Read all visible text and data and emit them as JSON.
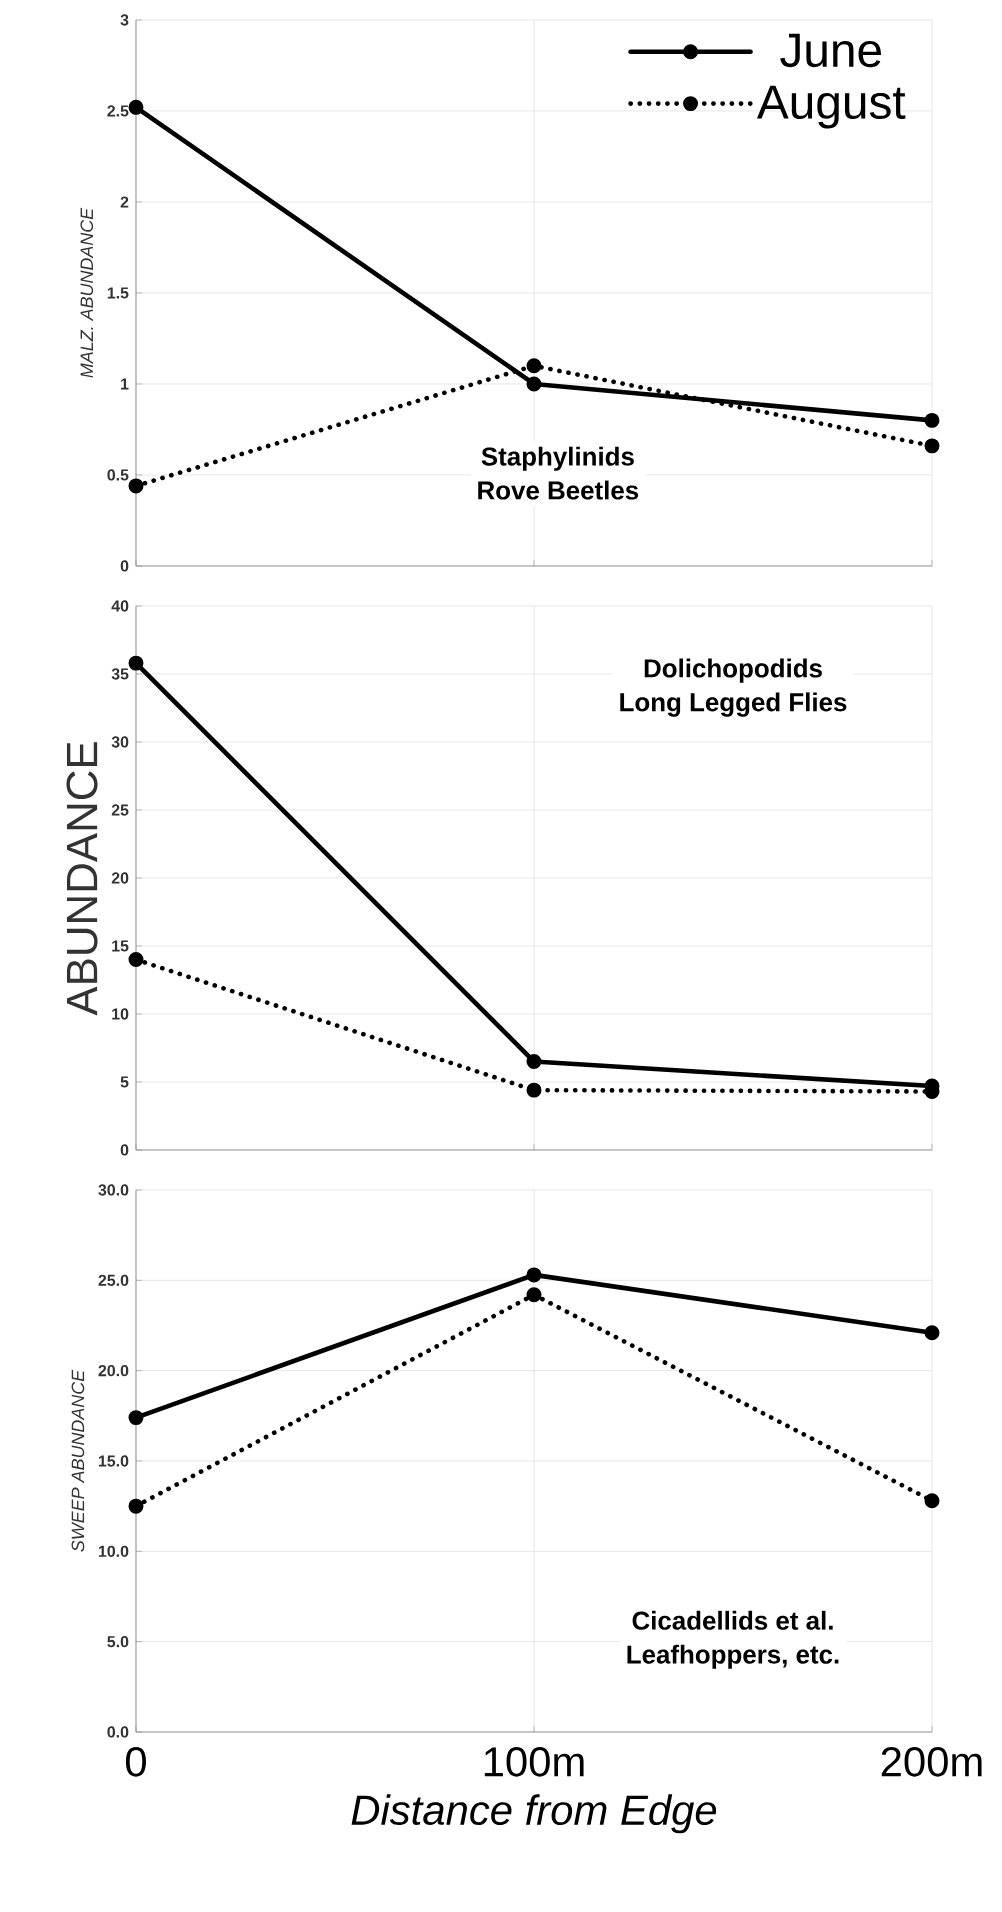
{
  "chart_data": [
    {
      "type": "line",
      "ylabel": "MALZ.  ABUNDANCE",
      "categories": [
        null,
        null,
        null
      ],
      "ylim": [
        0,
        3
      ],
      "yticks": [
        0,
        0.5,
        1,
        1.5,
        2,
        2.5,
        3
      ],
      "grid": true,
      "legend": "top right",
      "marker": "circle",
      "tick_labels": "y",
      "annotations": [
        "Staphylinids",
        "Rove Beetles"
      ],
      "series": [
        {
          "name": "June",
          "color": "#000000",
          "line_style": "solid",
          "values": [
            2.52,
            1.0,
            0.8
          ]
        },
        {
          "name": "August",
          "color": "#000000",
          "line_style": "dotted",
          "values": [
            0.44,
            1.1,
            0.66
          ]
        }
      ]
    },
    {
      "type": "line",
      "ylabel": "ABUNDANCE",
      "categories": [
        null,
        null,
        null
      ],
      "ylim": [
        0,
        40
      ],
      "yticks": [
        0,
        5,
        10,
        15,
        20,
        25,
        30,
        35,
        40
      ],
      "grid": true,
      "marker": "circle",
      "tick_labels": "y",
      "annotations": [
        "Dolichopodids",
        "Long Legged Flies"
      ],
      "series": [
        {
          "color": "#000000",
          "line_style": "solid",
          "values": [
            35.8,
            6.5,
            4.7
          ]
        },
        {
          "color": "#000000",
          "line_style": "dotted",
          "values": [
            14.0,
            4.4,
            4.3
          ]
        }
      ]
    },
    {
      "type": "line",
      "ylabel": "SWEEP ABUNDANCE",
      "xlabel": "Distance from Edge",
      "categories": [
        "0",
        "100m",
        "200m"
      ],
      "ylim": [
        0,
        30
      ],
      "yticks": [
        {
          "value": 0,
          "label": "0.0"
        },
        {
          "value": 5,
          "label": "5.0"
        },
        {
          "value": 10,
          "label": "10.0"
        },
        {
          "value": 15,
          "label": "15.0"
        },
        {
          "value": 20,
          "label": "20.0"
        },
        {
          "value": 25,
          "label": "25.0"
        },
        {
          "value": 30,
          "label": "30.0"
        }
      ],
      "grid": true,
      "marker": "circle",
      "annotations": [
        "Cicadellids et al.",
        "Leafhoppers, etc."
      ],
      "series": [
        {
          "color": "#000000",
          "line_style": "solid",
          "values": [
            17.4,
            25.3,
            22.1
          ]
        },
        {
          "color": "#000000",
          "line_style": "dotted",
          "values": [
            12.5,
            24.2,
            12.8
          ]
        }
      ]
    }
  ]
}
